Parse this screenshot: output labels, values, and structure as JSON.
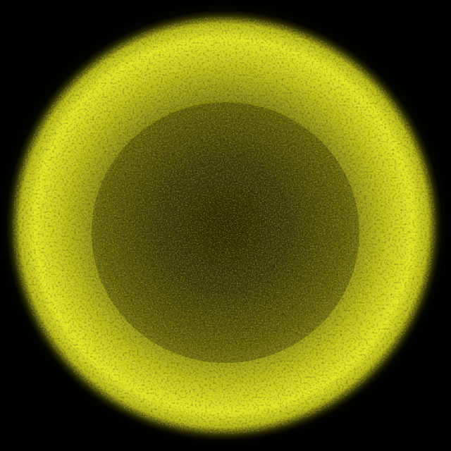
{
  "image": {
    "subject": "fluorescent-spherical-cell",
    "colors": {
      "background": "#000000",
      "rim": "#e6e81e",
      "rim_bright": "#f4f43a",
      "mid": "#a8a814",
      "core": "#3a3a06"
    }
  }
}
